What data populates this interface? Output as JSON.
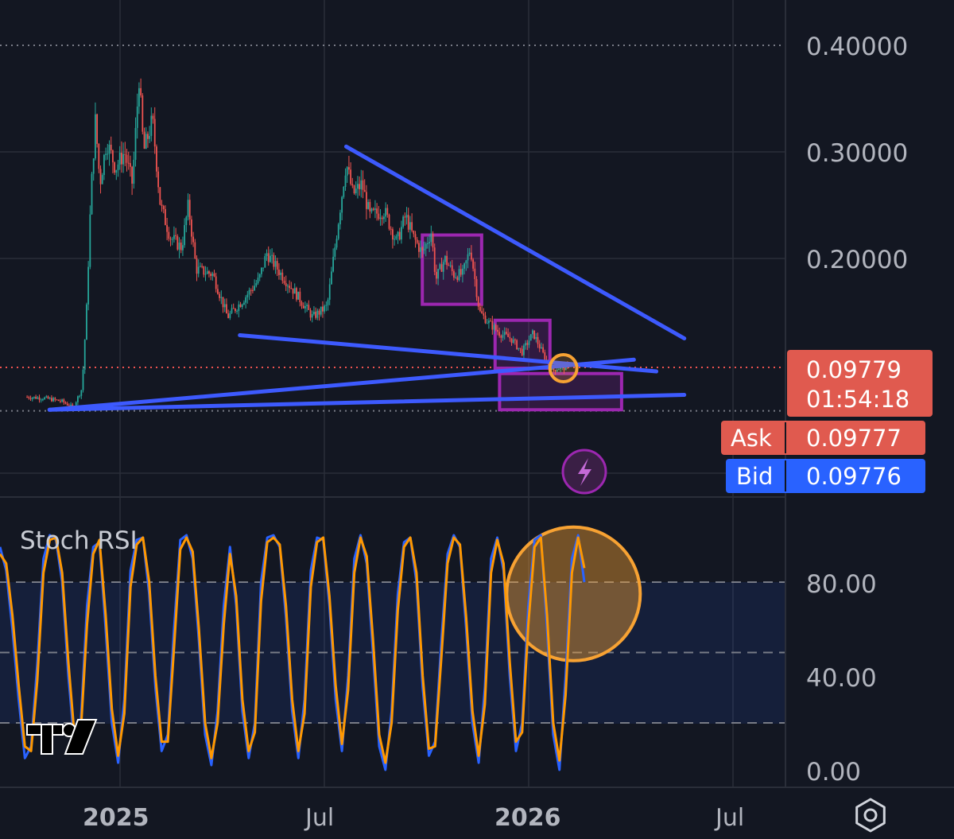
{
  "chart_data": [
    {
      "type": "candlestick",
      "pane": "price",
      "y_axis_ticks": [
        "0.40000",
        "0.30000",
        "0.20000"
      ],
      "ylim": [
        0.055,
        0.445
      ],
      "x_axis_ticks": [
        "2025",
        "Jul",
        "2026",
        "Jul"
      ],
      "grid": true,
      "price_path": [
        {
          "t": "2024-10-10",
          "v": 0.07
        },
        {
          "t": "2024-10-25",
          "v": 0.069
        },
        {
          "t": "2024-11-10",
          "v": 0.066
        },
        {
          "t": "2024-11-20",
          "v": 0.06
        },
        {
          "t": "2024-11-28",
          "v": 0.078
        },
        {
          "t": "2024-12-02",
          "v": 0.15
        },
        {
          "t": "2024-12-06",
          "v": 0.26
        },
        {
          "t": "2024-12-10",
          "v": 0.33
        },
        {
          "t": "2024-12-14",
          "v": 0.27
        },
        {
          "t": "2024-12-20",
          "v": 0.31
        },
        {
          "t": "2024-12-28",
          "v": 0.285
        },
        {
          "t": "2025-01-05",
          "v": 0.3
        },
        {
          "t": "2025-01-12",
          "v": 0.27
        },
        {
          "t": "2025-01-18",
          "v": 0.37
        },
        {
          "t": "2025-01-22",
          "v": 0.3
        },
        {
          "t": "2025-01-30",
          "v": 0.33
        },
        {
          "t": "2025-02-06",
          "v": 0.25
        },
        {
          "t": "2025-02-15",
          "v": 0.22
        },
        {
          "t": "2025-02-25",
          "v": 0.21
        },
        {
          "t": "2025-03-03",
          "v": 0.25
        },
        {
          "t": "2025-03-10",
          "v": 0.19
        },
        {
          "t": "2025-03-25",
          "v": 0.185
        },
        {
          "t": "2025-04-07",
          "v": 0.145
        },
        {
          "t": "2025-04-20",
          "v": 0.16
        },
        {
          "t": "2025-05-05",
          "v": 0.18
        },
        {
          "t": "2025-05-12",
          "v": 0.205
        },
        {
          "t": "2025-05-25",
          "v": 0.185
        },
        {
          "t": "2025-06-05",
          "v": 0.17
        },
        {
          "t": "2025-06-22",
          "v": 0.145
        },
        {
          "t": "2025-07-05",
          "v": 0.155
        },
        {
          "t": "2025-07-15",
          "v": 0.235
        },
        {
          "t": "2025-07-22",
          "v": 0.29
        },
        {
          "t": "2025-07-28",
          "v": 0.26
        },
        {
          "t": "2025-08-05",
          "v": 0.27
        },
        {
          "t": "2025-08-12",
          "v": 0.24
        },
        {
          "t": "2025-08-25",
          "v": 0.245
        },
        {
          "t": "2025-09-05",
          "v": 0.215
        },
        {
          "t": "2025-09-13",
          "v": 0.24
        },
        {
          "t": "2025-09-20",
          "v": 0.22
        },
        {
          "t": "2025-09-28",
          "v": 0.205
        },
        {
          "t": "2025-10-06",
          "v": 0.225
        },
        {
          "t": "2025-10-10",
          "v": 0.18
        },
        {
          "t": "2025-10-18",
          "v": 0.2
        },
        {
          "t": "2025-10-26",
          "v": 0.185
        },
        {
          "t": "2025-11-03",
          "v": 0.185
        },
        {
          "t": "2025-11-10",
          "v": 0.21
        },
        {
          "t": "2025-11-18",
          "v": 0.15
        },
        {
          "t": "2025-11-26",
          "v": 0.14
        },
        {
          "t": "2025-12-06",
          "v": 0.13
        },
        {
          "t": "2025-12-16",
          "v": 0.125
        },
        {
          "t": "2025-12-26",
          "v": 0.112
        },
        {
          "t": "2026-01-05",
          "v": 0.13
        },
        {
          "t": "2026-01-14",
          "v": 0.11
        },
        {
          "t": "2026-01-22",
          "v": 0.095
        },
        {
          "t": "2026-01-29",
          "v": 0.098
        },
        {
          "t": "2026-02-05",
          "v": 0.097
        }
      ],
      "annotations": {
        "trendlines": [
          {
            "from": {
              "t": "2025-07-22",
              "v": 0.305
            },
            "to": {
              "t": "2026-05-20",
              "v": 0.125
            },
            "color": "#3d5afe"
          },
          {
            "from": {
              "t": "2025-04-18",
              "v": 0.128
            },
            "to": {
              "t": "2026-04-25",
              "v": 0.094
            },
            "color": "#3d5afe"
          },
          {
            "from": {
              "t": "2024-10-30",
              "v": 0.058
            },
            "to": {
              "t": "2026-04-05",
              "v": 0.105
            },
            "color": "#3d5afe"
          },
          {
            "from": {
              "t": "2024-10-30",
              "v": 0.058
            },
            "to": {
              "t": "2026-05-20",
              "v": 0.072
            },
            "color": "#3d5afe"
          }
        ],
        "boxes": [
          {
            "t1": "2025-09-28",
            "t2": "2025-11-20",
            "v1": 0.222,
            "v2": 0.157
          },
          {
            "t1": "2025-12-02",
            "t2": "2026-01-20",
            "v1": 0.142,
            "v2": 0.097
          },
          {
            "t1": "2025-12-06",
            "t2": "2026-03-25",
            "v1": 0.092,
            "v2": 0.058
          }
        ],
        "circle": {
          "t": "2026-02-01",
          "v": 0.097
        }
      },
      "horizontal_lines": [
        {
          "name": "current",
          "v": 0.09779,
          "color": "#ef5350"
        },
        {
          "name": "top",
          "v": 0.4,
          "color": "#787b86"
        },
        {
          "name": "base",
          "v": 0.057,
          "color": "#787b86"
        }
      ]
    },
    {
      "type": "line",
      "pane": "indicator",
      "title": "Stoch RSI",
      "y_axis_ticks": [
        "80.00",
        "40.00",
        "0.00"
      ],
      "ylim": [
        0,
        100
      ],
      "band": [
        20,
        80
      ],
      "guides": [
        80,
        50,
        20
      ],
      "series": [
        {
          "color": "#2962ff",
          "values": [
            95,
            85,
            60,
            30,
            5,
            10,
            45,
            90,
            100,
            98,
            80,
            40,
            10,
            20,
            70,
            95,
            97,
            60,
            20,
            3,
            30,
            85,
            98,
            99,
            75,
            35,
            8,
            15,
            60,
            98,
            100,
            90,
            55,
            15,
            2,
            25,
            70,
            95,
            70,
            25,
            5,
            20,
            80,
            99,
            100,
            95,
            65,
            25,
            5,
            30,
            85,
            99,
            98,
            70,
            30,
            8,
            40,
            90,
            100,
            88,
            50,
            10,
            0,
            25,
            75,
            97,
            99,
            80,
            35,
            6,
            12,
            55,
            92,
            100,
            95,
            60,
            20,
            3,
            35,
            90,
            99,
            85,
            40,
            8,
            20,
            70,
            98,
            100,
            60,
            15,
            0,
            40,
            90,
            100,
            80
          ]
        },
        {
          "color": "#ff9800",
          "values": [
            92,
            88,
            66,
            36,
            10,
            8,
            38,
            84,
            98,
            99,
            84,
            46,
            14,
            16,
            62,
            92,
            98,
            66,
            26,
            6,
            24,
            78,
            96,
            99,
            80,
            40,
            12,
            12,
            52,
            94,
            99,
            93,
            60,
            20,
            5,
            20,
            62,
            92,
            74,
            30,
            8,
            16,
            72,
            97,
            99,
            96,
            70,
            30,
            8,
            24,
            78,
            97,
            99,
            74,
            36,
            11,
            34,
            84,
            99,
            91,
            56,
            15,
            3,
            20,
            68,
            95,
            99,
            84,
            40,
            9,
            10,
            48,
            88,
            99,
            96,
            65,
            25,
            6,
            28,
            84,
            98,
            88,
            46,
            12,
            16,
            62,
            95,
            99,
            66,
            20,
            4,
            32,
            84,
            99,
            86
          ]
        }
      ],
      "annotations": {
        "circle": {
          "t": "2026-02-10",
          "v": 75
        }
      }
    }
  ],
  "price_tag": {
    "price": "0.09779",
    "countdown": "01:54:18"
  },
  "ask": {
    "label": "Ask",
    "price": "0.09777"
  },
  "bid": {
    "label": "Bid",
    "price": "0.09776"
  },
  "logo": "TradingView",
  "colors": {
    "background": "#131722",
    "grid": "#2a2e39",
    "candle_up": "#26a69a",
    "candle_down": "#ef5350",
    "trendline": "#3d5afe",
    "box": "#9c27b0",
    "highlight": "#f7a233",
    "price_tag": "#ef5350",
    "ask": "#ef5350",
    "bid": "#2962ff",
    "stoch_k": "#2962ff",
    "stoch_d": "#ff9800"
  },
  "icons": {
    "lightning": "lightning-icon",
    "settings": "settings-icon"
  }
}
